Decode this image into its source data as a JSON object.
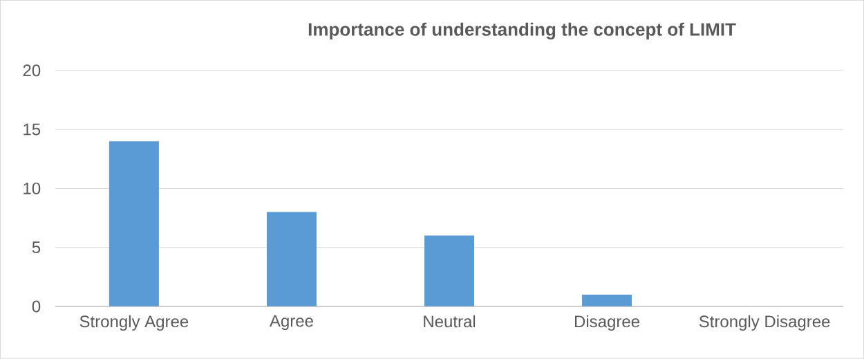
{
  "chart_data": {
    "type": "bar",
    "title": "Importance of understanding the concept of LIMIT",
    "categories": [
      "Strongly Agree",
      "Agree",
      "Neutral",
      "Disagree",
      "Strongly Disagree"
    ],
    "values": [
      14,
      8,
      6,
      1,
      0
    ],
    "color": "#5b9bd5",
    "ylim": [
      0,
      20
    ],
    "yticks": [
      0,
      5,
      10,
      15,
      20
    ],
    "grid": "y"
  }
}
